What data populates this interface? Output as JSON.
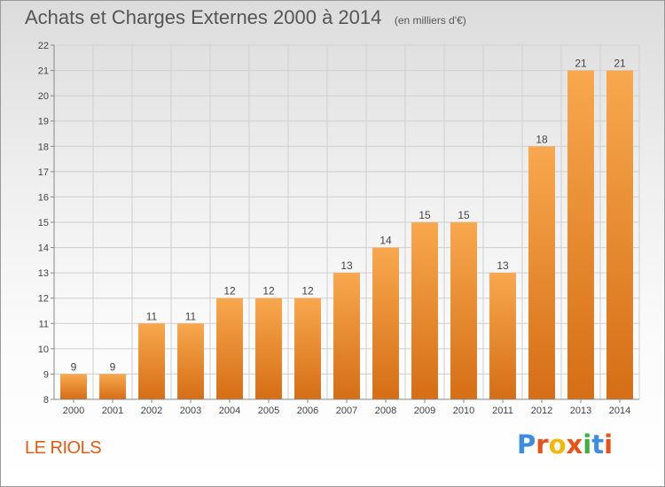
{
  "header": {
    "title": "Achats et Charges Externes 2000 à 2014",
    "subtitle": "(en milliers d'€)"
  },
  "commune": "LE RIOLS",
  "logo": {
    "text": "Proxiti",
    "colors": [
      "#3c8de0",
      "#e8531a",
      "#f2b80a",
      "#e8531a",
      "#3cb043",
      "#3c8de0",
      "#e8531a"
    ]
  },
  "colors": {
    "bar_light": "#f8a84e",
    "bar_dark": "#d56e15",
    "grid": "#cfcfcf",
    "axis": "#888888"
  },
  "chart_data": {
    "type": "bar",
    "title": "Achats et Charges Externes 2000 à 2014",
    "subtitle": "(en milliers d'€)",
    "categories": [
      "2000",
      "2001",
      "2002",
      "2003",
      "2004",
      "2005",
      "2006",
      "2007",
      "2008",
      "2009",
      "2010",
      "2011",
      "2012",
      "2013",
      "2014"
    ],
    "values": [
      9,
      9,
      11,
      11,
      12,
      12,
      12,
      13,
      14,
      15,
      15,
      13,
      18,
      21,
      21
    ],
    "ylim": [
      8,
      22
    ],
    "yticks": [
      8,
      9,
      10,
      11,
      12,
      13,
      14,
      15,
      16,
      17,
      18,
      19,
      20,
      21,
      22
    ],
    "grid": true,
    "data_labels": true
  }
}
